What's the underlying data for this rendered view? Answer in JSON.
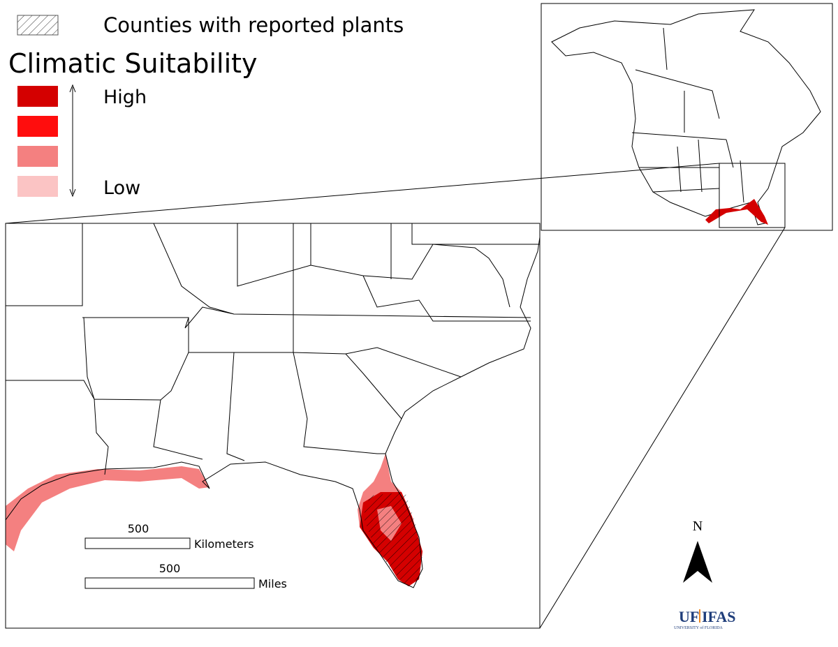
{
  "legend": {
    "hatch_label": "Counties with reported plants",
    "title": "Climatic Suitability",
    "high": "High",
    "low": "Low",
    "swatch_colors": [
      "#d40000",
      "#ff0d0d",
      "#f48080",
      "#fbc4c4"
    ]
  },
  "scale_bar": {
    "km_value": 500,
    "km_unit": "Kilometers",
    "mi_value": 500,
    "mi_unit": "Miles"
  },
  "north_arrow": {
    "label": "N"
  },
  "logo": {
    "uf": "UF",
    "ifas": "IFAS",
    "university": "UNIVERSITY of FLORIDA"
  }
}
